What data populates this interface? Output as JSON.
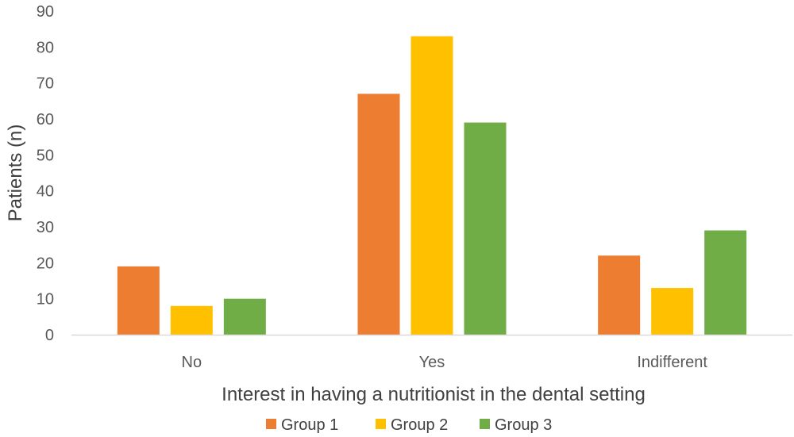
{
  "chart_data": {
    "type": "bar",
    "title": "",
    "xlabel": "Interest in having a nutritionist in the dental setting",
    "ylabel": "Patients (n)",
    "categories": [
      "No",
      "Yes",
      "Indifferent"
    ],
    "ylim": [
      0,
      90
    ],
    "yticks": [
      0,
      10,
      20,
      30,
      40,
      50,
      60,
      70,
      80,
      90
    ],
    "grid": false,
    "legend_position": "bottom",
    "series": [
      {
        "name": "Group 1",
        "color": "#ED7D31",
        "values": [
          19,
          67,
          22
        ]
      },
      {
        "name": "Group 2",
        "color": "#FFC000",
        "values": [
          8,
          83,
          13
        ]
      },
      {
        "name": "Group 3",
        "color": "#70AD47",
        "values": [
          10,
          59,
          29
        ]
      }
    ]
  }
}
